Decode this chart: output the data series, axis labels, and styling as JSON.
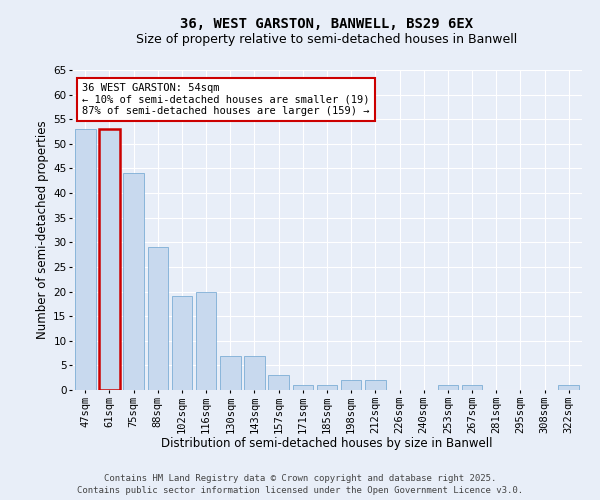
{
  "title_line1": "36, WEST GARSTON, BANWELL, BS29 6EX",
  "title_line2": "Size of property relative to semi-detached houses in Banwell",
  "xlabel": "Distribution of semi-detached houses by size in Banwell",
  "ylabel": "Number of semi-detached properties",
  "categories": [
    "47sqm",
    "61sqm",
    "75sqm",
    "88sqm",
    "102sqm",
    "116sqm",
    "130sqm",
    "143sqm",
    "157sqm",
    "171sqm",
    "185sqm",
    "198sqm",
    "212sqm",
    "226sqm",
    "240sqm",
    "253sqm",
    "267sqm",
    "281sqm",
    "295sqm",
    "308sqm",
    "322sqm"
  ],
  "values": [
    53,
    53,
    44,
    29,
    19,
    20,
    7,
    7,
    3,
    1,
    1,
    2,
    2,
    0,
    0,
    1,
    1,
    0,
    0,
    0,
    1
  ],
  "bar_color": "#c8d9ee",
  "bar_edge_color": "#6ba3d0",
  "highlight_bar_index": 1,
  "highlight_color": "#cc0000",
  "ylim": [
    0,
    65
  ],
  "yticks": [
    0,
    5,
    10,
    15,
    20,
    25,
    30,
    35,
    40,
    45,
    50,
    55,
    60,
    65
  ],
  "annotation_text": "36 WEST GARSTON: 54sqm\n← 10% of semi-detached houses are smaller (19)\n87% of semi-detached houses are larger (159) →",
  "annotation_box_facecolor": "#ffffff",
  "annotation_box_edgecolor": "#cc0000",
  "footer_line1": "Contains HM Land Registry data © Crown copyright and database right 2025.",
  "footer_line2": "Contains public sector information licensed under the Open Government Licence v3.0.",
  "background_color": "#e8eef8",
  "grid_color": "#ffffff",
  "title_fontsize": 10,
  "subtitle_fontsize": 9,
  "axis_label_fontsize": 8.5,
  "tick_fontsize": 7.5,
  "annotation_fontsize": 7.5,
  "footer_fontsize": 6.5
}
